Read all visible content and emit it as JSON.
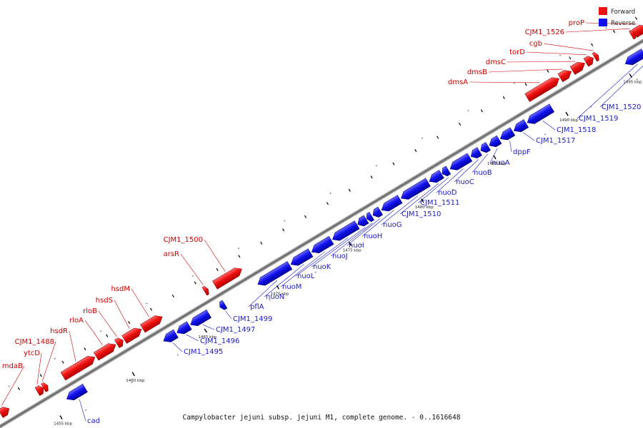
{
  "title": "Campylobacter jejuni subsp. jejuni M1, complete genome. - 0..1616648",
  "legend": [
    {
      "label": "Forward",
      "color": "#ee1111"
    },
    {
      "label": "Reverse",
      "color": "#1111ee"
    }
  ],
  "ticks": [
    "1455 kbp",
    "1460 kbp",
    "1465 kbp",
    "1470 kbp",
    "1475 kbp",
    "1480 kbp",
    "1485 kbp",
    "1490 kbp",
    "1495 kbp"
  ],
  "forward_genes": [
    "mdaB",
    "ytcD",
    "CJM1_1488",
    "hsdR",
    "rloA",
    "rloB",
    "hsdS",
    "hsdM",
    "arsR",
    "CJM1_1500",
    "dmsA",
    "dmsB",
    "dmsC",
    "torD",
    "cgb",
    "CJM1_1526",
    "proP"
  ],
  "reverse_genes": [
    "cad",
    "CJM1_1495",
    "CJM1_1496",
    "CJM1_1497",
    "CJM1_1499",
    "pflA",
    "nuoN",
    "nuoM",
    "nuoL",
    "nuoK",
    "nuoJ",
    "nuoI",
    "nuoH",
    "nuoG",
    "CJM1_1510",
    "CJM1_1511",
    "nuoD",
    "nuoC",
    "nuoB",
    "nuoA",
    "dppF",
    "CJM1_1517",
    "CJM1_1518",
    "CJM1_1519",
    "CJM1_1520"
  ]
}
